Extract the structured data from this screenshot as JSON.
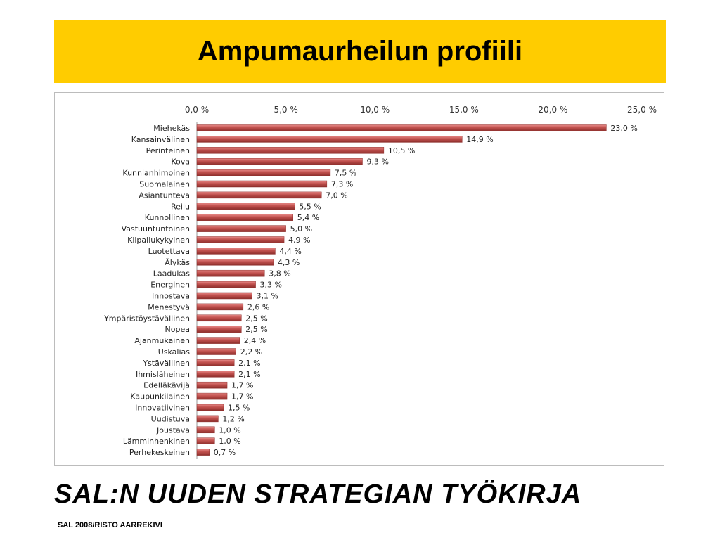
{
  "slide": {
    "title": "Ampumaurheilun profiili",
    "subtitle": "SAL:N UUDEN STRATEGIAN TYÖKIRJA",
    "footer": "SAL 2008/RISTO AARREKIVI",
    "title_bg": "#ffcc00"
  },
  "chart_data": {
    "type": "bar",
    "orientation": "horizontal",
    "title": "",
    "xlabel": "",
    "ylabel": "",
    "xlim": [
      0,
      25
    ],
    "x_ticks": [
      "0,0 %",
      "5,0 %",
      "10,0 %",
      "15,0 %",
      "20,0 %",
      "25,0 %"
    ],
    "x_axis_position": "top",
    "grid": false,
    "bar_color": "#c0504d",
    "categories": [
      "Miehekäs",
      "Kansainvälinen",
      "Perinteinen",
      "Kova",
      "Kunnianhimoinen",
      "Suomalainen",
      "Asiantunteva",
      "Reilu",
      "Kunnollinen",
      "Vastuuntuntoinen",
      "Kilpailukykyinen",
      "Luotettava",
      "Älykäs",
      "Laadukas",
      "Energinen",
      "Innostava",
      "Menestyvä",
      "Ympäristöystävällinen",
      "Nopea",
      "Ajanmukainen",
      "Uskalias",
      "Ystävällinen",
      "Ihmisläheinen",
      "Edelläkävijä",
      "Kaupunkilainen",
      "Innovatiivinen",
      "Uudistuva",
      "Joustava",
      "Lämminhenkinen",
      "Perhekeskeinen"
    ],
    "values": [
      23.0,
      14.9,
      10.5,
      9.3,
      7.5,
      7.3,
      7.0,
      5.5,
      5.4,
      5.0,
      4.9,
      4.4,
      4.3,
      3.8,
      3.3,
      3.1,
      2.6,
      2.5,
      2.5,
      2.4,
      2.2,
      2.1,
      2.1,
      1.7,
      1.7,
      1.5,
      1.2,
      1.0,
      1.0,
      0.7
    ],
    "value_labels": [
      "23,0 %",
      "14,9 %",
      "10,5 %",
      "9,3 %",
      "7,5 %",
      "7,3 %",
      "7,0 %",
      "5,5 %",
      "5,4 %",
      "5,0 %",
      "4,9 %",
      "4,4 %",
      "4,3 %",
      "3,8 %",
      "3,3 %",
      "3,1 %",
      "2,6 %",
      "2,5 %",
      "2,5 %",
      "2,4 %",
      "2,2 %",
      "2,1 %",
      "2,1 %",
      "1,7 %",
      "1,7 %",
      "1,5 %",
      "1,2 %",
      "1,0 %",
      "1,0 %",
      "0,7 %"
    ]
  }
}
